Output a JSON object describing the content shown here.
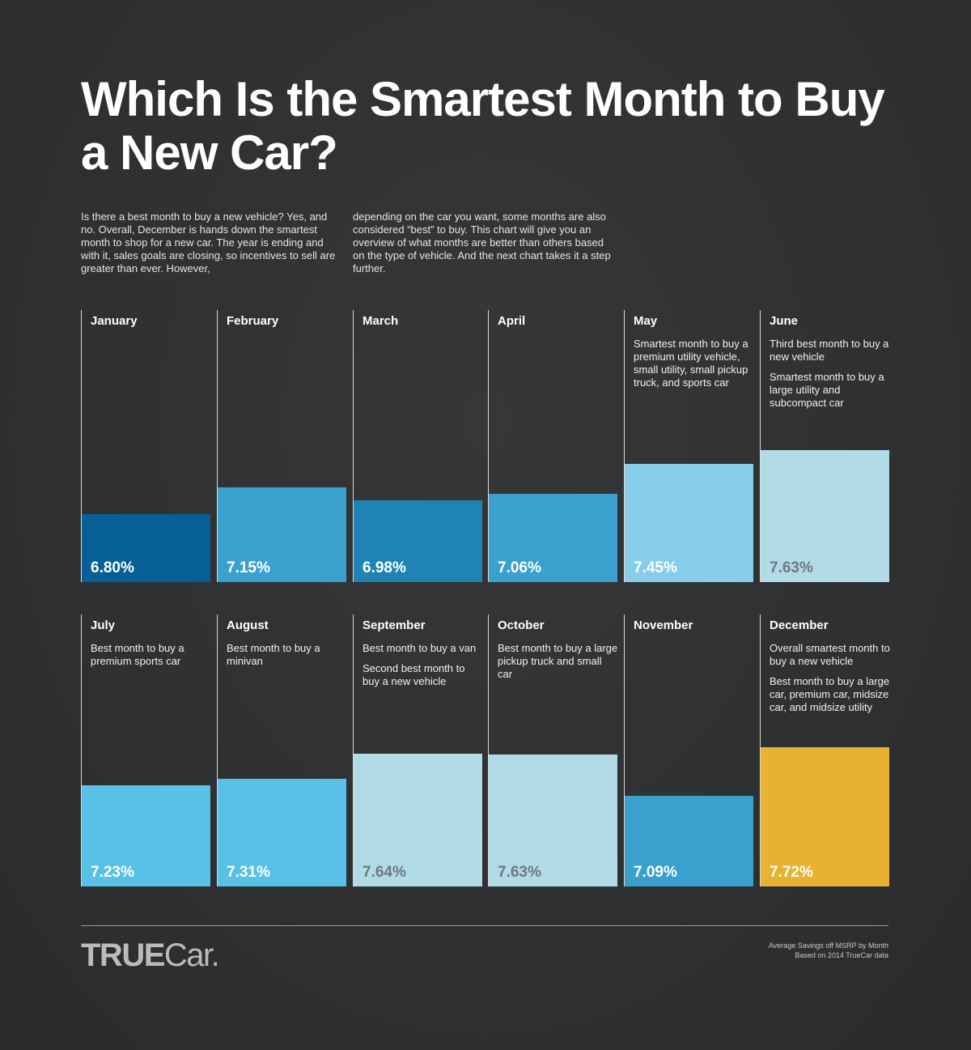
{
  "title": "Which Is the Smartest Month to Buy a New Car?",
  "intro": {
    "left": "Is there a best month to buy a new vehicle? Yes, and no. Overall, December is hands down the smartest month to shop for a new car. The year is ending and with it, sales goals are closing, so incentives to sell are greater than ever. However,",
    "right": "depending on the car you want, some months are also considered “best” to buy. This chart will give you an overview of what months are better than others based on the type of vehicle. And the next chart takes it a step further."
  },
  "chart_data": {
    "type": "bar",
    "categories": [
      "January",
      "February",
      "March",
      "April",
      "May",
      "June",
      "July",
      "August",
      "September",
      "October",
      "November",
      "December"
    ],
    "values": [
      6.8,
      7.15,
      6.98,
      7.06,
      7.45,
      7.63,
      7.23,
      7.31,
      7.64,
      7.63,
      7.09,
      7.72
    ],
    "value_labels": [
      "6.80%",
      "7.15%",
      "6.98%",
      "7.06%",
      "7.45%",
      "7.63%",
      "7.23%",
      "7.31%",
      "7.64%",
      "7.63%",
      "7.09%",
      "7.72%"
    ],
    "colors": [
      "#065f96",
      "#3aa1cf",
      "#1f83b6",
      "#3aa1cf",
      "#86cde9",
      "#b2dbe8",
      "#57c1e8",
      "#57c1e8",
      "#b2dbe8",
      "#b2dbe8",
      "#3aa1cf",
      "#e8b132"
    ],
    "dark_label": [
      false,
      false,
      false,
      false,
      false,
      true,
      false,
      false,
      true,
      true,
      false,
      false
    ],
    "notes": [
      [],
      [],
      [],
      [],
      [
        "Smartest month to buy a premium utility vehicle, small utility, small pickup truck, and sports car"
      ],
      [
        "Third best month to buy a new vehicle",
        "Smartest month to buy a large utility and subcompact car"
      ],
      [
        "Best month to buy a premium sports car"
      ],
      [
        "Best month to buy a minivan"
      ],
      [
        "Best month to buy a van",
        "Second best month to buy a new vehicle"
      ],
      [
        "Best month to buy a large pickup truck and small car"
      ],
      [],
      [
        "Overall smartest month to buy a new vehicle",
        "Best month to buy a large car, premium car, midsize car, and midsize utility"
      ]
    ],
    "layout": "2 rows of 6 columns"
  },
  "footer": {
    "logo_true": "TRUE",
    "logo_car": "Car",
    "logo_dot": ".",
    "source_line1": "Average Savings off MSRP by Month",
    "source_line2": "Based on 2014 TrueCar data"
  }
}
